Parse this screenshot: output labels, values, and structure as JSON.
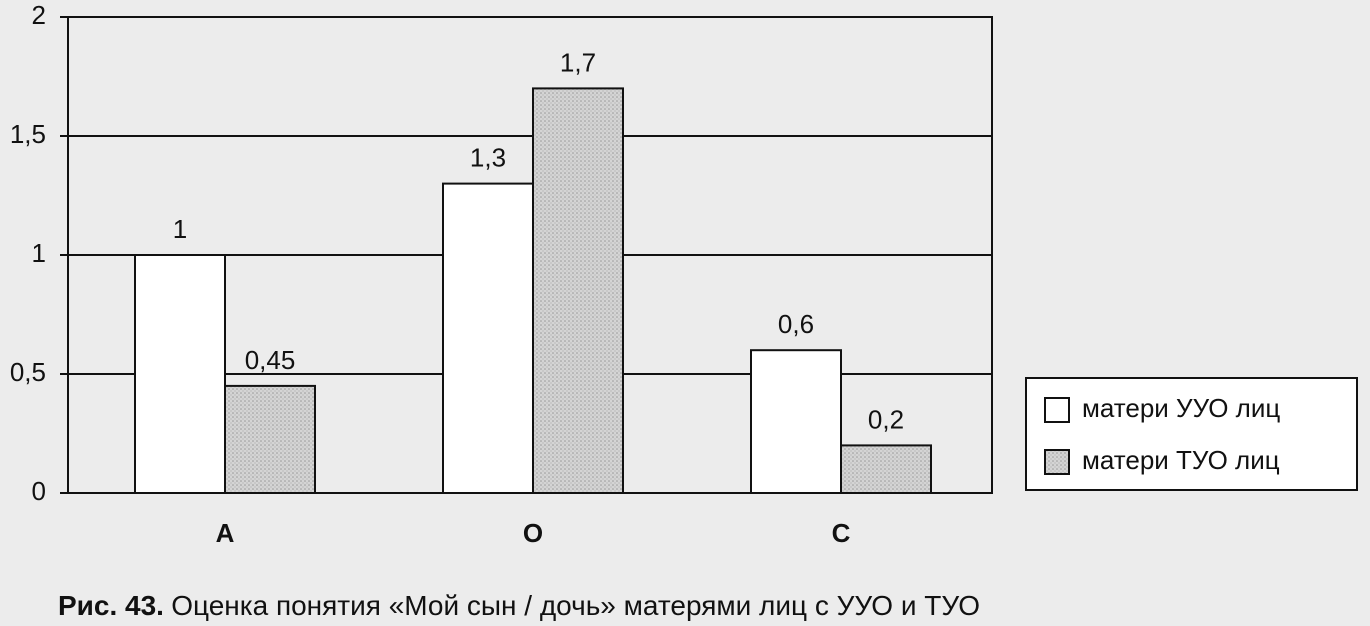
{
  "chart_data": {
    "type": "bar",
    "categories": [
      "А",
      "О",
      "С"
    ],
    "series": [
      {
        "name": "матери УУО лиц",
        "color": "#ffffff",
        "values": [
          1,
          1.3,
          0.6
        ],
        "value_labels": [
          "1",
          "1,3",
          "0,6"
        ]
      },
      {
        "name": "матери ТУО лиц",
        "color": "#cfcfcf",
        "values": [
          0.45,
          1.7,
          0.2
        ],
        "value_labels": [
          "0,45",
          "1,7",
          "0,2"
        ]
      }
    ],
    "ylim": [
      0,
      2
    ],
    "yticks": [
      0,
      {
        "value": 0.5,
        "label": "0,5"
      },
      1,
      {
        "value": 1.5,
        "label": "1,5"
      },
      2
    ],
    "grid": true,
    "legend": "right"
  },
  "caption": {
    "label": "Рис. 43.",
    "text": "Оценка понятия «Мой сын / дочь» матерями лиц с УУО и ТУО"
  }
}
